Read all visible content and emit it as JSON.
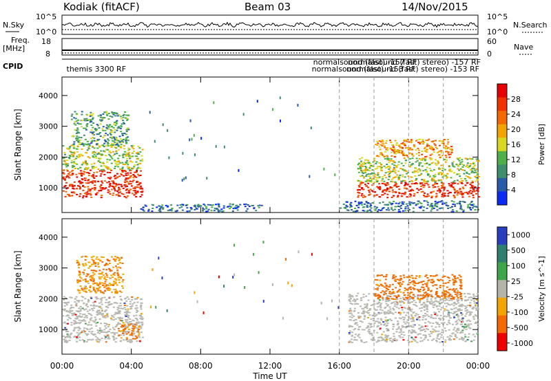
{
  "header": {
    "station": "Kodiak (fitACF)",
    "beam": "Beam 03",
    "date": "14/Nov/2015"
  },
  "strip_panels": {
    "nsky_label": "N.Sky",
    "nsearch_label": "N.Search",
    "noise_ticks": [
      "10^5",
      "10^0"
    ],
    "freq_label": "Freq.",
    "freq_unit": "[MHz]",
    "freq_ticks": [
      "18",
      "8"
    ],
    "nave_label": "Nave",
    "nave_ticks": [
      "60",
      "0"
    ],
    "cpid_label": "CPID",
    "cpid_entries": [
      {
        "text": "themis 3300 RF",
        "hour": 0.1
      },
      {
        "text": "normalsound (fast) -157 RF",
        "hour": 16.0
      },
      {
        "text": "normalsound (fast) -153 RF",
        "hour": 16.0
      },
      {
        "text": "normalsound (fast) stereo) -157 RF",
        "hour": 18.0
      },
      {
        "text": "normalsound (fast) stereo) -153 RF",
        "hour": 18.0
      }
    ]
  },
  "colors": {
    "power_scale": [
      "#0b2bf2",
      "#2a5aa8",
      "#3f8f6f",
      "#4fb04a",
      "#d8d820",
      "#f2a500",
      "#f26a00",
      "#f23300",
      "#e60000"
    ],
    "velocity_scale": [
      "#2a3fc0",
      "#2f7f6f",
      "#3fa54a",
      "#b4b4a8",
      "#f2a500",
      "#f26a00",
      "#ee0000"
    ],
    "ground_scatter": "#b8b8b0"
  },
  "chart_data": [
    {
      "type": "heatmap",
      "title": "Power",
      "xlabel": "Time UT",
      "ylabel": "Slant Range [km]",
      "xlim": [
        0,
        24
      ],
      "ylim": [
        200,
        4600
      ],
      "x_ticks": [
        "00:00",
        "04:00",
        "08:00",
        "12:00",
        "16:00",
        "20:00",
        "00:00"
      ],
      "y_ticks": [
        "1000",
        "2000",
        "3000",
        "4000"
      ],
      "colorbar_label": "Power [dB]",
      "colorbar_ticks": [
        "4",
        "8",
        "12",
        "16",
        "20",
        "24",
        "28"
      ],
      "colorbar_range": [
        0,
        30
      ],
      "regions": [
        {
          "t0": 0.0,
          "t1": 4.6,
          "r0": 700,
          "r1": 1600,
          "value": 26
        },
        {
          "t0": 0.0,
          "t1": 4.6,
          "r0": 1600,
          "r1": 2400,
          "value": 14
        },
        {
          "t0": 0.5,
          "t1": 3.8,
          "r0": 2400,
          "r1": 3500,
          "value": 10
        },
        {
          "t0": 4.5,
          "t1": 11.5,
          "r0": 250,
          "r1": 500,
          "value": 6
        },
        {
          "t0": 16.0,
          "t1": 24.0,
          "r0": 250,
          "r1": 600,
          "value": 6
        },
        {
          "t0": 17.0,
          "t1": 24.0,
          "r0": 700,
          "r1": 1200,
          "value": 26
        },
        {
          "t0": 17.0,
          "t1": 24.0,
          "r0": 1200,
          "r1": 2000,
          "value": 14
        },
        {
          "t0": 18.0,
          "t1": 22.5,
          "r0": 2000,
          "r1": 2600,
          "value": 20
        }
      ]
    },
    {
      "type": "heatmap",
      "title": "Velocity",
      "xlabel": "Time UT",
      "ylabel": "Slant Range [km]",
      "xlim": [
        0,
        24
      ],
      "ylim": [
        200,
        4600
      ],
      "x_ticks": [
        "00:00",
        "04:00",
        "08:00",
        "12:00",
        "16:00",
        "20:00",
        "00:00"
      ],
      "y_ticks": [
        "1000",
        "2000",
        "3000",
        "4000"
      ],
      "colorbar_label": "Velocity [m s^-1]",
      "colorbar_ticks": [
        "1000",
        "500",
        "100",
        "25",
        "-25",
        "-100",
        "-500",
        "-1000"
      ],
      "regions": [
        {
          "t0": 0.0,
          "t1": 4.6,
          "r0": 600,
          "r1": 2100,
          "value": 0,
          "ground_scatter": true
        },
        {
          "t0": 3.2,
          "t1": 4.4,
          "r0": 700,
          "r1": 1200,
          "value": -120
        },
        {
          "t0": 0.8,
          "t1": 3.5,
          "r0": 2200,
          "r1": 3400,
          "value": -80
        },
        {
          "t0": 16.5,
          "t1": 24.0,
          "r0": 600,
          "r1": 2200,
          "value": 0,
          "ground_scatter": true
        },
        {
          "t0": 18.0,
          "t1": 23.0,
          "r0": 2000,
          "r1": 2800,
          "value": -150
        }
      ]
    }
  ]
}
